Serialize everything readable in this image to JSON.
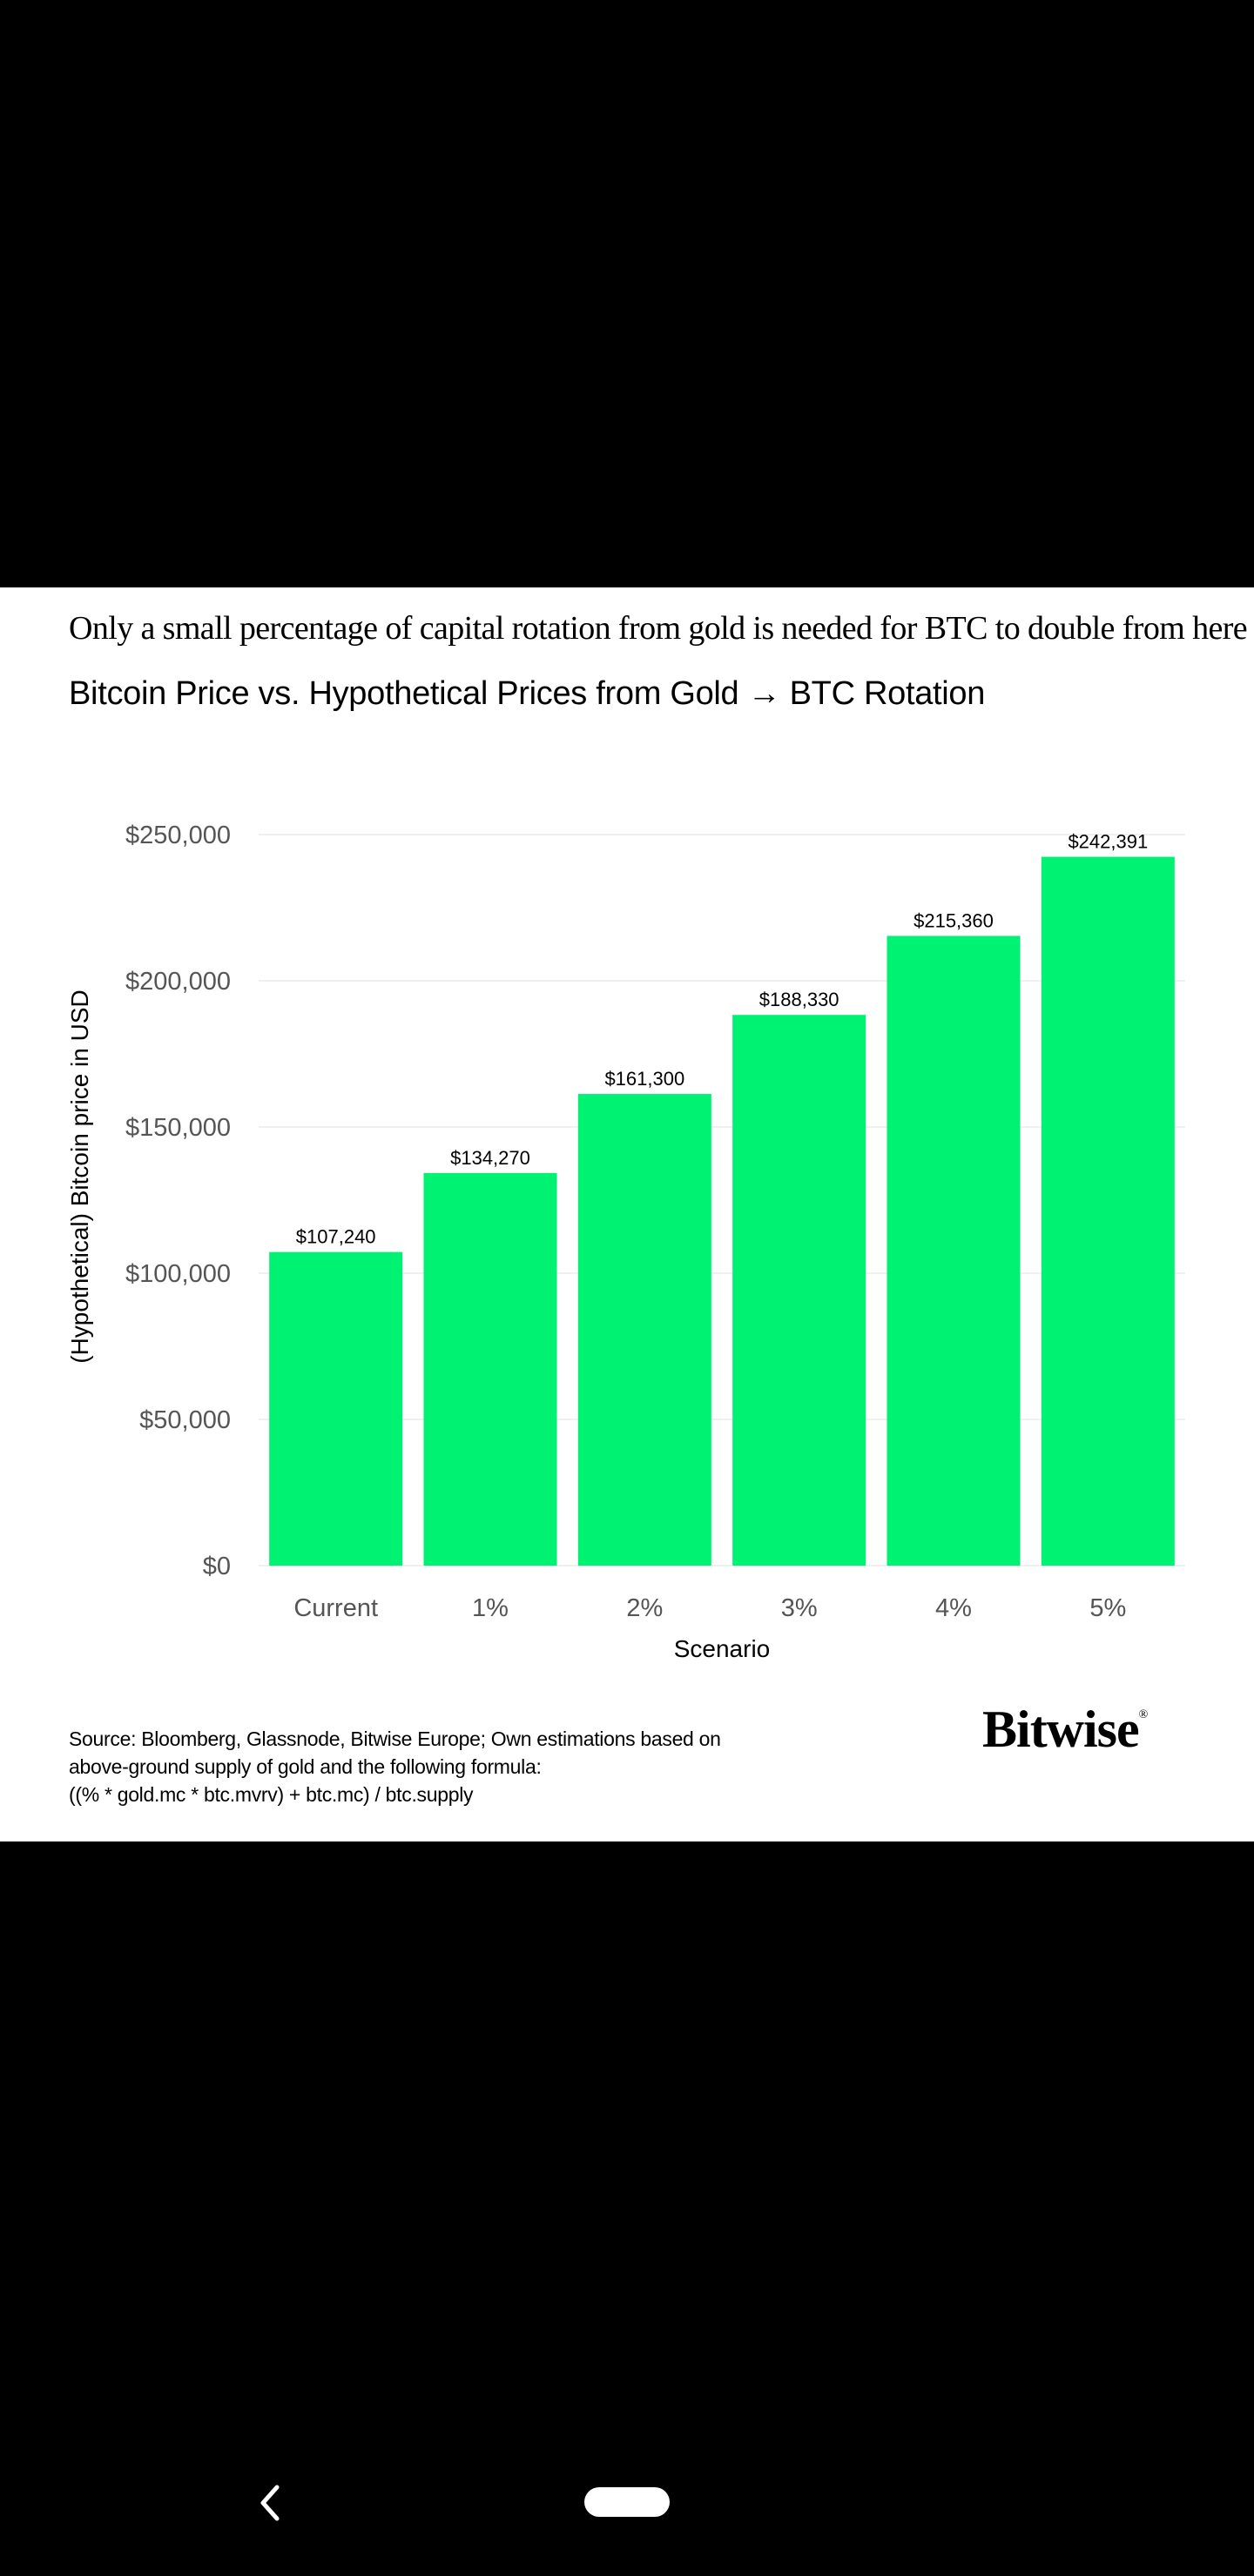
{
  "headline": "Only a small percentage of capital rotation from gold is needed for BTC to double from here",
  "chart_data": {
    "type": "bar",
    "title": "Bitcoin Price vs. Hypothetical Prices from Gold → BTC Rotation",
    "xlabel": "Scenario",
    "ylabel": "(Hypothetical) Bitcoin price in USD",
    "categories": [
      "Current",
      "1%",
      "2%",
      "3%",
      "4%",
      "5%"
    ],
    "values": [
      107240,
      134270,
      161300,
      188330,
      215360,
      242391
    ],
    "value_labels": [
      "$107,240",
      "$134,270",
      "$161,300",
      "$188,330",
      "$215,360",
      "$242,391"
    ],
    "ylim": [
      0,
      250000
    ],
    "yticks": [
      0,
      50000,
      100000,
      150000,
      200000,
      250000
    ],
    "ytick_labels": [
      "$0",
      "$50,000",
      "$100,000",
      "$150,000",
      "$200,000",
      "$250,000"
    ],
    "grid": true,
    "legend": "none",
    "bar_color": "#00F272"
  },
  "source_lines": [
    "Source: Bloomberg, Glassnode, Bitwise Europe; Own estimations based on",
    "above-ground supply of gold and the following formula:",
    " ((% * gold.mc * btc.mvrv) + btc.mc) / btc.supply"
  ],
  "logo": "Bitwise",
  "logo_mark": "®",
  "nav": {
    "back_icon": "chevron-left-icon",
    "home_icon": "home-pill-icon"
  }
}
